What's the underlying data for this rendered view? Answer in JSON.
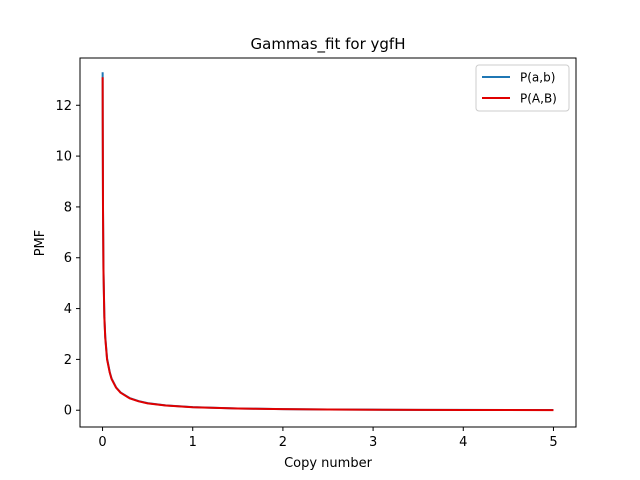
{
  "chart_data": {
    "type": "line",
    "title": "Gammas_fit for ygfH",
    "xlabel": "Copy number",
    "ylabel": "PMF",
    "xlim": [
      -0.25,
      5.25
    ],
    "ylim": [
      -0.66,
      13.86
    ],
    "xticks": [
      0,
      1,
      2,
      3,
      4,
      5
    ],
    "xtick_labels": [
      "0",
      "1",
      "2",
      "3",
      "4",
      "5"
    ],
    "yticks": [
      0,
      2,
      4,
      6,
      8,
      10,
      12
    ],
    "ytick_labels": [
      "0",
      "2",
      "4",
      "6",
      "8",
      "10",
      "12"
    ],
    "grid": false,
    "legend_placement": "top-right",
    "series": [
      {
        "name": "P(a,b)",
        "color": "#1f77b4",
        "x": [
          0.001,
          0.002,
          0.005,
          0.01,
          0.02,
          0.03,
          0.05,
          0.08,
          0.1,
          0.15,
          0.2,
          0.3,
          0.4,
          0.5,
          0.7,
          1.0,
          1.5,
          2.0,
          2.5,
          3.0,
          3.5,
          4.0,
          4.5,
          5.0
        ],
        "y": [
          13.3,
          11.5,
          8.0,
          5.6,
          3.7,
          2.9,
          2.05,
          1.5,
          1.25,
          0.9,
          0.7,
          0.48,
          0.36,
          0.28,
          0.19,
          0.12,
          0.07,
          0.045,
          0.03,
          0.022,
          0.016,
          0.012,
          0.009,
          0.007
        ]
      },
      {
        "name": "P(A,B)",
        "color": "#e00000",
        "x": [
          0.001,
          0.002,
          0.005,
          0.01,
          0.02,
          0.03,
          0.05,
          0.08,
          0.1,
          0.15,
          0.2,
          0.3,
          0.4,
          0.5,
          0.7,
          1.0,
          1.5,
          2.0,
          2.5,
          3.0,
          3.5,
          4.0,
          4.5,
          5.0
        ],
        "y": [
          13.1,
          11.3,
          7.9,
          5.5,
          3.65,
          2.85,
          2.0,
          1.48,
          1.23,
          0.89,
          0.69,
          0.47,
          0.35,
          0.27,
          0.185,
          0.118,
          0.068,
          0.044,
          0.029,
          0.021,
          0.015,
          0.011,
          0.008,
          0.006
        ]
      }
    ]
  }
}
